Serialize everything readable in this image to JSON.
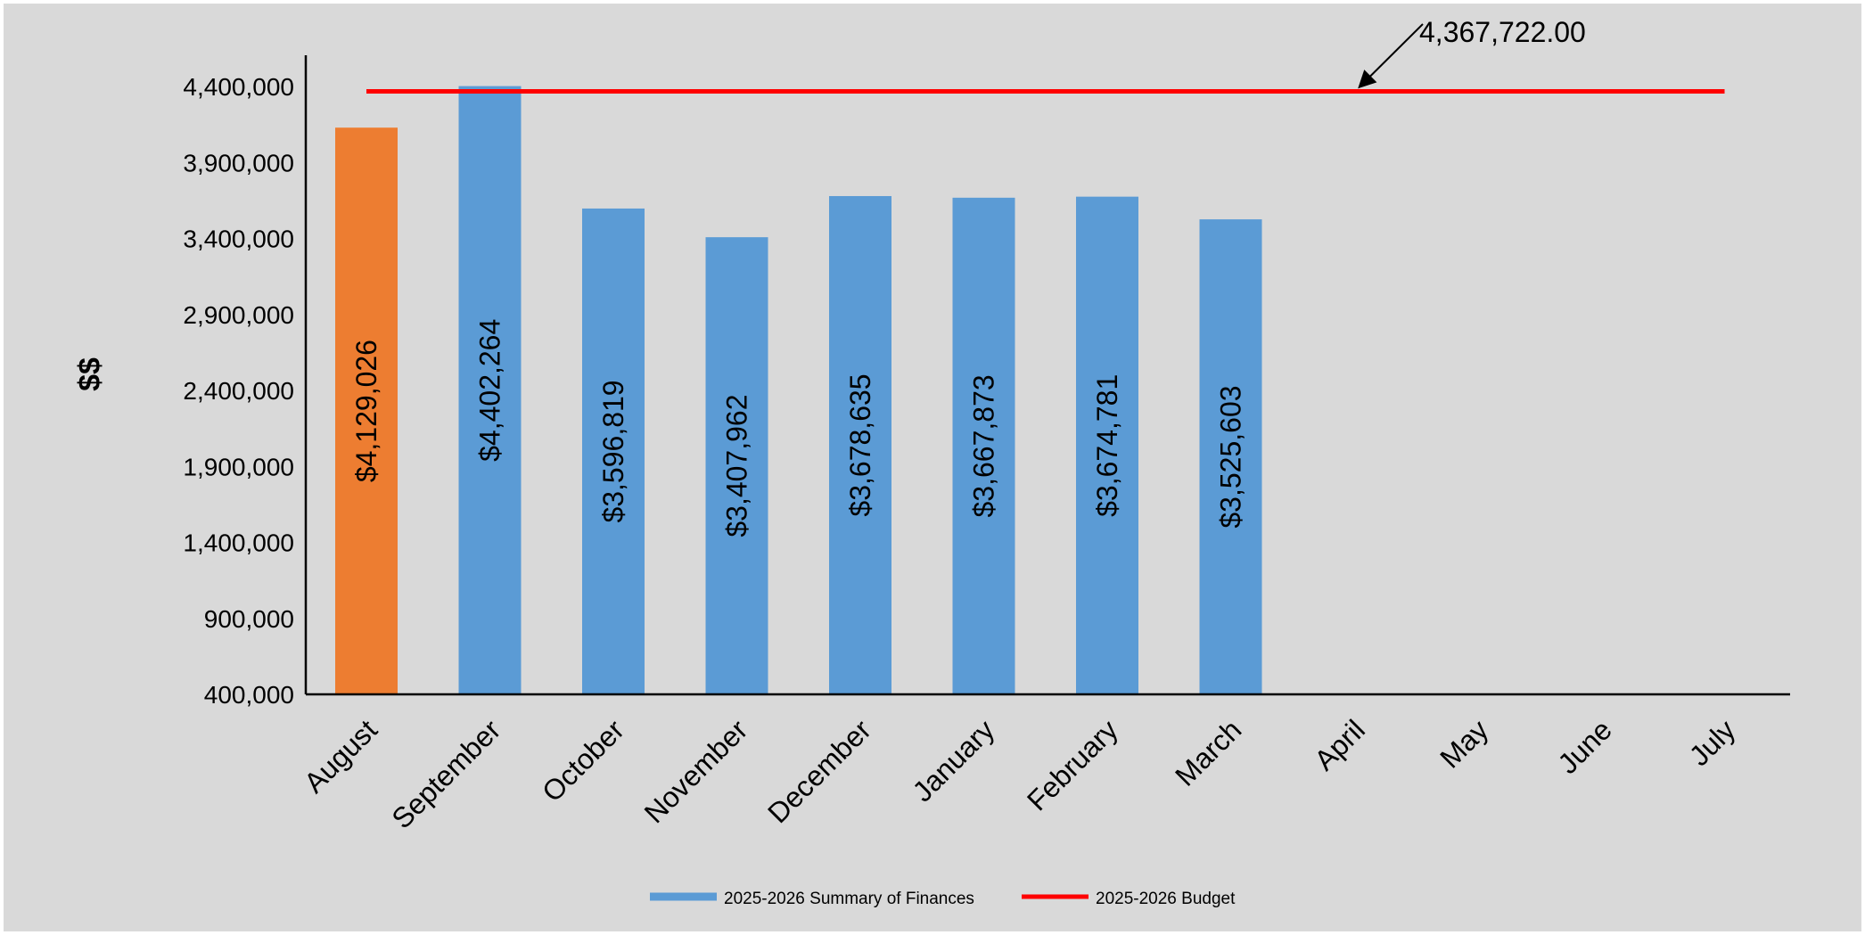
{
  "chart_data": {
    "type": "bar",
    "title": "",
    "xlabel": "",
    "ylabel": "$$",
    "ylim": [
      400000,
      4400000
    ],
    "yticks": [
      400000,
      900000,
      1400000,
      1900000,
      2400000,
      2900000,
      3400000,
      3900000,
      4400000
    ],
    "ytick_labels": [
      "400,000",
      "900,000",
      "1,400,000",
      "1,900,000",
      "2,400,000",
      "2,900,000",
      "3,400,000",
      "3,900,000",
      "4,400,000"
    ],
    "categories": [
      "August",
      "September",
      "October",
      "November",
      "December",
      "January",
      "February",
      "March",
      "April",
      "May",
      "June",
      "July"
    ],
    "series": [
      {
        "name": "2025-2026 Summary of Finances",
        "values": [
          4129026,
          4402264,
          3596819,
          3407962,
          3678635,
          3667873,
          3674781,
          3525603,
          null,
          null,
          null,
          null
        ],
        "labels": [
          "$4,129,026",
          "$4,402,264",
          "$3,596,819",
          "$3,407,962",
          "$3,678,635",
          "$3,667,873",
          "$3,674,781",
          "$3,525,603",
          "",
          "",
          "",
          ""
        ],
        "color": "#5b9bd5",
        "highlight_color": "#ed7d31",
        "highlight_index": 0
      },
      {
        "name": "2025-2026 Budget",
        "type": "line",
        "value": 4367722,
        "color": "#ff0000"
      }
    ],
    "annotation": {
      "text": "4,367,722.00"
    },
    "legend_placement": "bottom",
    "grid": false
  }
}
